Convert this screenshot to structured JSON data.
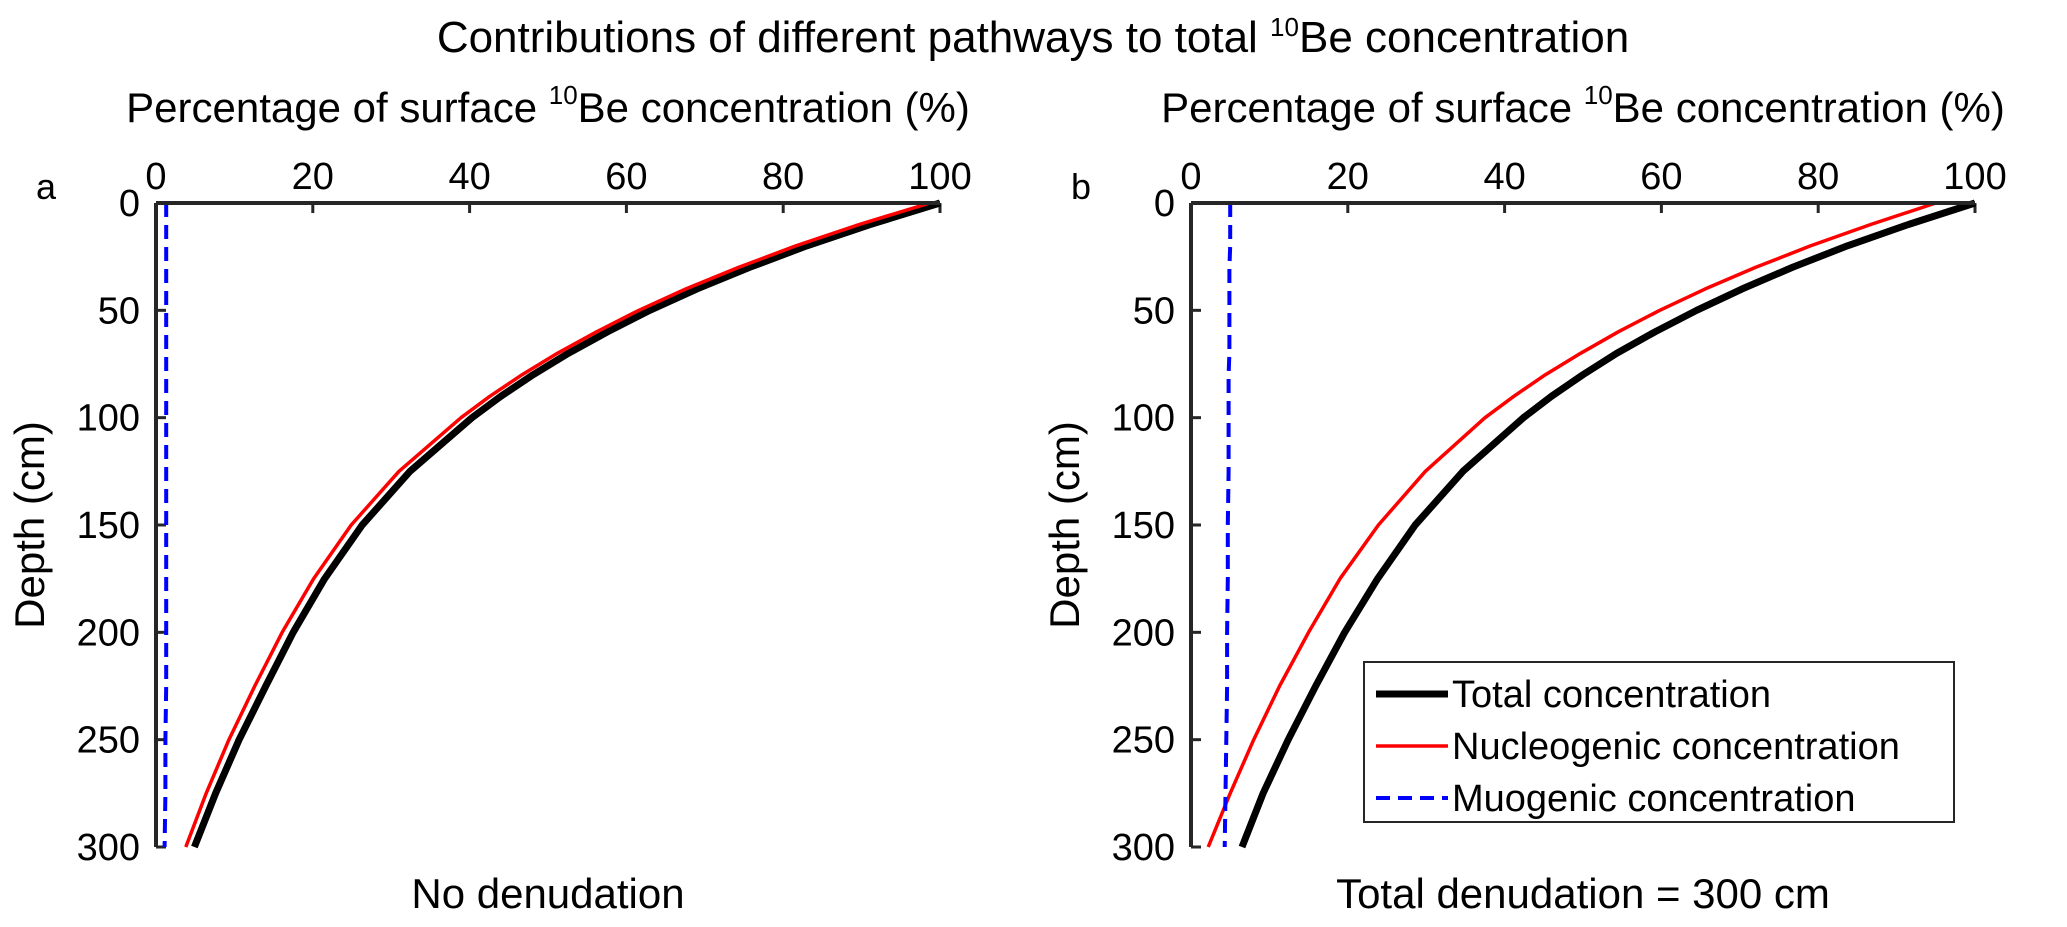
{
  "figure": {
    "title_prefix": "Contributions of different pathways to total ",
    "title_sup": "10",
    "title_suffix": "Be concentration"
  },
  "chart_data": [
    {
      "type": "line",
      "panel_label": "a",
      "subtitle": "No denudation",
      "xlabel_prefix": "Percentage of surface ",
      "xlabel_sup": "10",
      "xlabel_suffix": "Be concentration (%)",
      "ylabel": "Depth (cm)",
      "xlim": [
        0,
        100
      ],
      "ylim": [
        0,
        300
      ],
      "y_reversed": true,
      "x_axis_position": "top",
      "xticks": [
        0,
        20,
        40,
        60,
        80,
        100
      ],
      "yticks": [
        0,
        50,
        100,
        150,
        200,
        250,
        300
      ],
      "depth": [
        0,
        10,
        20,
        30,
        40,
        50,
        60,
        70,
        80,
        90,
        100,
        125,
        150,
        175,
        200,
        225,
        250,
        275,
        300
      ],
      "series": [
        {
          "name": "Total concentration",
          "color": "#000000",
          "style": "solid",
          "values": [
            100,
            91.1,
            83.0,
            75.7,
            69.0,
            63.0,
            57.6,
            52.6,
            48.1,
            44.0,
            40.3,
            32.4,
            26.3,
            21.5,
            17.5,
            14.0,
            10.6,
            7.6,
            4.9
          ]
        },
        {
          "name": "Nucleogenic concentration",
          "color": "#ff0000",
          "style": "solid",
          "values": [
            98.7,
            89.7,
            81.6,
            74.3,
            67.6,
            61.6,
            56.2,
            51.2,
            46.7,
            42.6,
            38.9,
            31.0,
            24.9,
            20.1,
            16.1,
            12.6,
            9.3,
            6.4,
            3.8
          ]
        },
        {
          "name": "Muogenic concentration",
          "color": "#0000ff",
          "style": "dashed",
          "values": [
            1.3,
            1.3,
            1.3,
            1.3,
            1.3,
            1.3,
            1.3,
            1.3,
            1.3,
            1.3,
            1.3,
            1.3,
            1.3,
            1.3,
            1.3,
            1.3,
            1.2,
            1.2,
            1.1
          ]
        }
      ]
    },
    {
      "type": "line",
      "panel_label": "b",
      "subtitle": "Total denudation = 300 cm",
      "xlabel_prefix": "Percentage of surface ",
      "xlabel_sup": "10",
      "xlabel_suffix": "Be concentration (%)",
      "ylabel": "Depth (cm)",
      "xlim": [
        0,
        100
      ],
      "ylim": [
        0,
        300
      ],
      "y_reversed": true,
      "x_axis_position": "top",
      "xticks": [
        0,
        20,
        40,
        60,
        80,
        100
      ],
      "yticks": [
        0,
        50,
        100,
        150,
        200,
        250,
        300
      ],
      "depth": [
        0,
        10,
        20,
        30,
        40,
        50,
        60,
        70,
        80,
        90,
        100,
        125,
        150,
        175,
        200,
        225,
        250,
        275,
        300
      ],
      "series": [
        {
          "name": "Total concentration",
          "color": "#000000",
          "style": "solid",
          "values": [
            100,
            91.5,
            83.7,
            76.7,
            70.3,
            64.5,
            59.2,
            54.3,
            50.0,
            46.0,
            42.4,
            34.7,
            28.6,
            23.8,
            19.6,
            15.9,
            12.4,
            9.2,
            6.5
          ]
        },
        {
          "name": "Nucleogenic concentration",
          "color": "#ff0000",
          "style": "solid",
          "values": [
            95.0,
            86.7,
            79.0,
            72.0,
            65.6,
            59.8,
            54.5,
            49.7,
            45.2,
            41.2,
            37.5,
            29.9,
            23.9,
            19.0,
            15.0,
            11.3,
            8.0,
            5.0,
            2.2
          ]
        },
        {
          "name": "Muogenic concentration",
          "color": "#0000ff",
          "style": "dashed",
          "values": [
            5.0,
            5.0,
            5.0,
            4.9,
            4.9,
            4.9,
            4.9,
            4.9,
            4.8,
            4.8,
            4.8,
            4.8,
            4.7,
            4.7,
            4.6,
            4.6,
            4.5,
            4.4,
            4.3
          ]
        }
      ],
      "legend": {
        "position": "bottom-right",
        "entries": [
          "Total concentration",
          "Nucleogenic concentration",
          "Muogenic concentration"
        ]
      }
    }
  ]
}
